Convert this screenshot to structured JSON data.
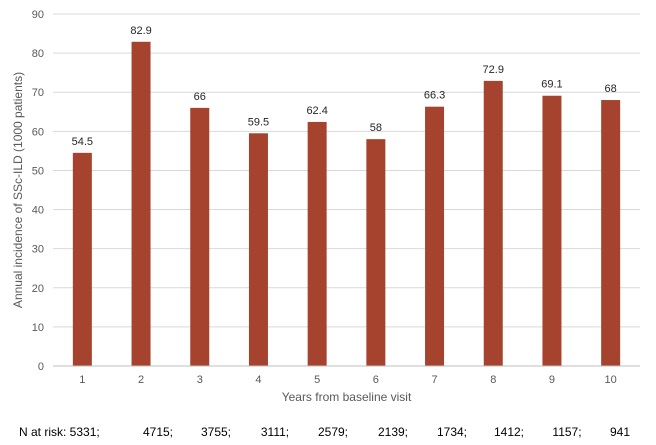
{
  "chart_data": {
    "type": "bar",
    "categories": [
      "1",
      "2",
      "3",
      "4",
      "5",
      "6",
      "7",
      "8",
      "9",
      "10"
    ],
    "values": [
      54.5,
      82.9,
      66,
      59.5,
      62.4,
      58,
      66.3,
      72.9,
      69.1,
      68
    ],
    "data_labels": [
      "54.5",
      "82.9",
      "66",
      "59.5",
      "62.4",
      "58",
      "66.3",
      "72.9",
      "69.1",
      "68"
    ],
    "xlabel": "Years from baseline visit",
    "ylabel": "Annual incidence of SSc-ILD (1000 patients)",
    "ylim": [
      0,
      90
    ],
    "yticks": [
      0,
      10,
      20,
      30,
      40,
      50,
      60,
      70,
      80,
      90
    ],
    "grid": true,
    "bar_color": "#A5432E",
    "grid_color": "#D9D9D9",
    "at_risk": {
      "label": "N at risk: 5331;",
      "values": [
        "4715;",
        "3755;",
        "3111;",
        "2579;",
        "2139;",
        "1734;",
        "1412;",
        "1157;",
        "941"
      ]
    }
  }
}
